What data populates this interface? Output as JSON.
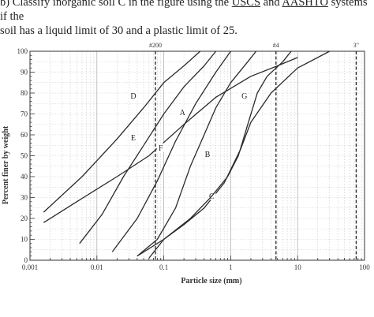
{
  "question": {
    "prefix": "b)  Classify inorganic soil C in the figure using the ",
    "uscs": "USCS",
    "mid": " and ",
    "aashto": "AASHTO",
    "suffix": " systems if the",
    "line2": "soil has a liquid limit of 30 and a plastic limit of 25."
  },
  "chart_data": {
    "type": "line",
    "xlabel": "Particle size (mm)",
    "ylabel": "Percent finer by weight",
    "x_scale": "log",
    "xlim": [
      0.001,
      100
    ],
    "ylim": [
      0,
      100
    ],
    "x_ticks": [
      {
        "value": 0.001,
        "label": "0.001"
      },
      {
        "value": 0.01,
        "label": "0.01"
      },
      {
        "value": 0.1,
        "label": "0.1"
      },
      {
        "value": 1,
        "label": "1"
      },
      {
        "value": 10,
        "label": "10"
      },
      {
        "value": 100,
        "label": "100"
      }
    ],
    "y_ticks": [
      0,
      10,
      20,
      30,
      40,
      50,
      60,
      70,
      80,
      90,
      100
    ],
    "grid": true,
    "sieves": [
      {
        "label": "#200",
        "x": 0.075
      },
      {
        "label": "#4",
        "x": 4.75
      },
      {
        "label": "3\"",
        "x": 75
      }
    ],
    "series": [
      {
        "name": "A",
        "label_at": [
          0.19,
          70
        ],
        "points": [
          [
            0.0016,
            18
          ],
          [
            0.005,
            28
          ],
          [
            0.02,
            40
          ],
          [
            0.06,
            50
          ],
          [
            0.2,
            65
          ],
          [
            0.6,
            78
          ],
          [
            2.0,
            88
          ],
          [
            5.0,
            93
          ],
          [
            10,
            97
          ]
        ]
      },
      {
        "name": "B",
        "label_at": [
          0.45,
          50
        ],
        "points": [
          [
            0.04,
            2
          ],
          [
            0.08,
            10
          ],
          [
            0.15,
            25
          ],
          [
            0.25,
            45
          ],
          [
            0.4,
            60
          ],
          [
            0.6,
            73
          ],
          [
            1.0,
            85
          ],
          [
            1.8,
            95
          ],
          [
            2.4,
            100
          ]
        ]
      },
      {
        "name": "C",
        "label_at": [
          0.52,
          30
        ],
        "points": [
          [
            0.06,
            1
          ],
          [
            0.1,
            10
          ],
          [
            0.2,
            17
          ],
          [
            0.4,
            25
          ],
          [
            0.8,
            37
          ],
          [
            1.4,
            53
          ],
          [
            2.0,
            66
          ],
          [
            4.0,
            80
          ],
          [
            10,
            92
          ],
          [
            30,
            100
          ]
        ]
      },
      {
        "name": "D",
        "label_at": [
          0.035,
          78
        ],
        "points": [
          [
            0.0016,
            23
          ],
          [
            0.006,
            40
          ],
          [
            0.02,
            58
          ],
          [
            0.05,
            73
          ],
          [
            0.1,
            85
          ],
          [
            0.2,
            93
          ],
          [
            0.35,
            100
          ]
        ]
      },
      {
        "name": "E",
        "label_at": [
          0.035,
          58
        ],
        "points": [
          [
            0.0055,
            8
          ],
          [
            0.012,
            22
          ],
          [
            0.025,
            40
          ],
          [
            0.05,
            55
          ],
          [
            0.1,
            70
          ],
          [
            0.2,
            83
          ],
          [
            0.4,
            93
          ],
          [
            0.6,
            100
          ]
        ]
      },
      {
        "name": "F",
        "label_at": [
          0.09,
          53
        ],
        "points": [
          [
            0.017,
            4
          ],
          [
            0.04,
            20
          ],
          [
            0.08,
            38
          ],
          [
            0.15,
            57
          ],
          [
            0.3,
            75
          ],
          [
            0.6,
            90
          ],
          [
            1.0,
            100
          ]
        ]
      },
      {
        "name": "G",
        "label_at": [
          1.6,
          78
        ],
        "points": [
          [
            0.04,
            2
          ],
          [
            0.1,
            10
          ],
          [
            0.25,
            20
          ],
          [
            0.5,
            30
          ],
          [
            0.9,
            40
          ],
          [
            1.3,
            50
          ],
          [
            1.8,
            65
          ],
          [
            2.5,
            80
          ],
          [
            3.5,
            88
          ],
          [
            6,
            95
          ],
          [
            8,
            100
          ]
        ]
      }
    ]
  }
}
